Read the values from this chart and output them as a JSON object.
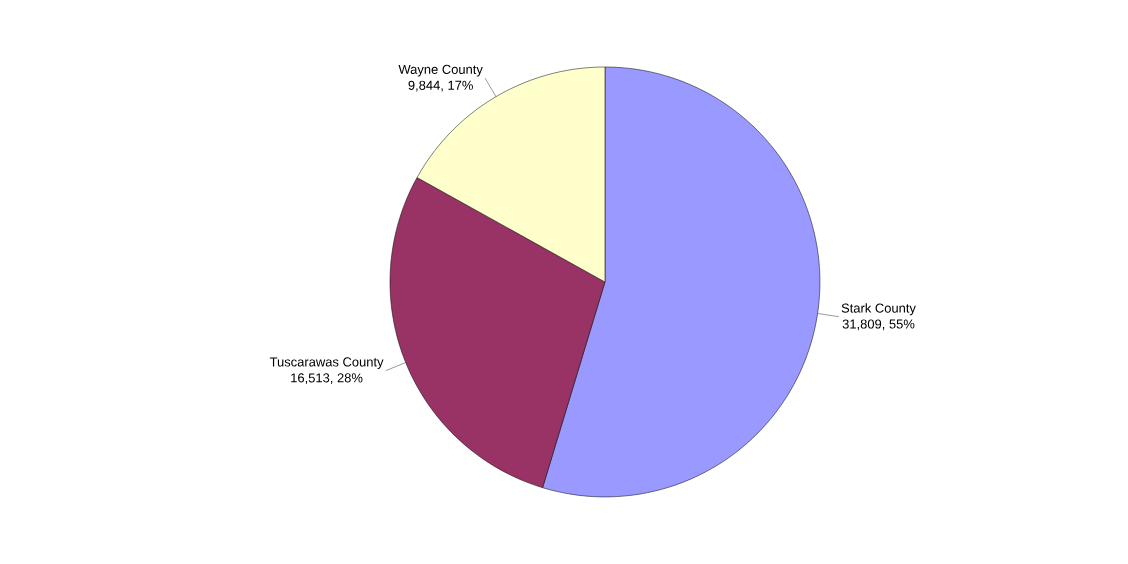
{
  "chart_data": {
    "type": "pie",
    "categories": [
      "Stark County",
      "Tuscarawas County",
      "Wayne County"
    ],
    "values": [
      31809,
      16513,
      9844
    ],
    "value_labels": [
      "31,809, 55%",
      "16,513, 28%",
      "9,844, 17%"
    ],
    "colors": [
      "#9999ff",
      "#993366",
      "#ffffcc"
    ]
  }
}
